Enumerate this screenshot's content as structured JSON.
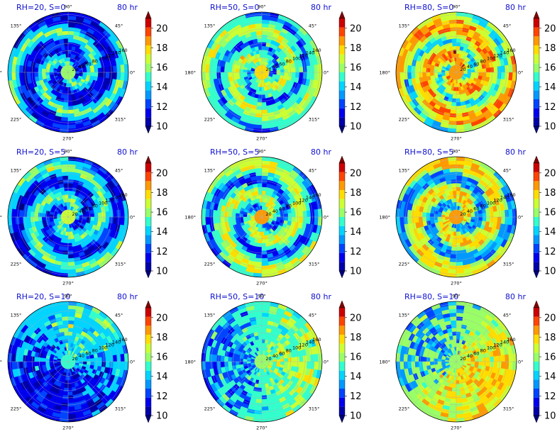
{
  "chart_data": {
    "type": "heatmap",
    "projection": "polar",
    "colormap": "jet",
    "colorbar": {
      "ticks": [
        "10",
        "12",
        "14",
        "16",
        "18",
        "20"
      ],
      "vmin": 10,
      "vmax": 21,
      "extend": "both"
    },
    "angular_ticks": [
      "0°",
      "45°",
      "90°",
      "135°",
      "180°",
      "225°",
      "270°",
      "315°"
    ],
    "radial_ticks": [
      "20",
      "40",
      "60",
      "80",
      "100",
      "120",
      "140",
      "160"
    ],
    "panels": [
      {
        "title": "RH=20, S=0",
        "time": "80 hr",
        "base_level": 14,
        "core_level": 16,
        "dark": 0.55,
        "bright": 0.05,
        "spiral": true,
        "rot": 0.0
      },
      {
        "title": "RH=50, S=0",
        "time": "80 hr",
        "base_level": 15,
        "core_level": 18,
        "dark": 0.1,
        "bright": 0.2,
        "spiral": true,
        "rot": 0.6
      },
      {
        "title": "RH=80, S=0",
        "time": "80 hr",
        "base_level": 17,
        "core_level": 19,
        "dark": 0.12,
        "bright": 0.35,
        "spiral": true,
        "rot": 1.2
      },
      {
        "title": "RH=20, S=5",
        "time": "80 hr",
        "base_level": 14,
        "core_level": 17,
        "dark": 0.35,
        "bright": 0.1,
        "spiral": true,
        "rot": 2.0
      },
      {
        "title": "RH=50, S=5",
        "time": "80 hr",
        "base_level": 15,
        "core_level": 19,
        "dark": 0.2,
        "bright": 0.25,
        "spiral": true,
        "rot": 2.6
      },
      {
        "title": "RH=80, S=5",
        "time": "80 hr",
        "base_level": 16,
        "core_level": 19,
        "dark": 0.3,
        "bright": 0.35,
        "spiral": true,
        "rot": 3.1
      },
      {
        "title": "RH=20, S=10",
        "time": "80 hr",
        "base_level": 14,
        "core_level": 15,
        "dark": 0.5,
        "bright": 0.08,
        "spiral": false,
        "rot": 0.4
      },
      {
        "title": "RH=50, S=10",
        "time": "80 hr",
        "base_level": 15,
        "core_level": 16,
        "dark": 0.3,
        "bright": 0.25,
        "spiral": false,
        "rot": 1.5
      },
      {
        "title": "RH=80, S=10",
        "time": "80 hr",
        "base_level": 16,
        "core_level": 16,
        "dark": 0.25,
        "bright": 0.4,
        "spiral": false,
        "rot": 2.2
      }
    ]
  }
}
